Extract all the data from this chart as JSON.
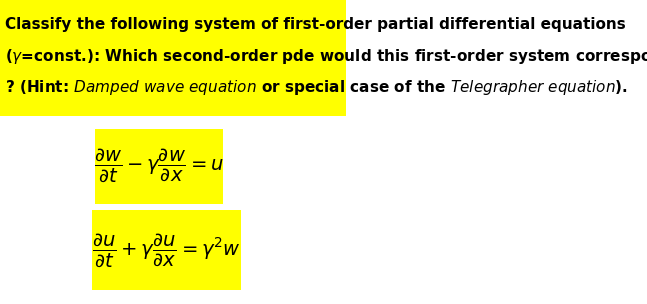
{
  "bg_color": "#ffffff",
  "highlight_color": "#ffff00",
  "text_color": "#000000",
  "fig_width": 6.47,
  "fig_height": 3.04,
  "dpi": 100,
  "header_text_line1": "Classify the following system of first-order partial differential equations",
  "header_text_line2": "($\\gamma$=const.): Which second-order pde would this first-order system correspond to",
  "header_text_line3": "? (Hint: ",
  "header_italic1": "Damped wave equation",
  "header_mid": " or special case of the ",
  "header_italic2": "Telegrapher equation",
  "header_end": ").",
  "eq1": "$\\dfrac{\\partial w}{\\partial t} - \\gamma\\dfrac{\\partial w}{\\partial x} = u$",
  "eq2": "$\\dfrac{\\partial u}{\\partial t} + \\gamma\\dfrac{\\partial u}{\\partial x} = \\gamma^2 w$"
}
